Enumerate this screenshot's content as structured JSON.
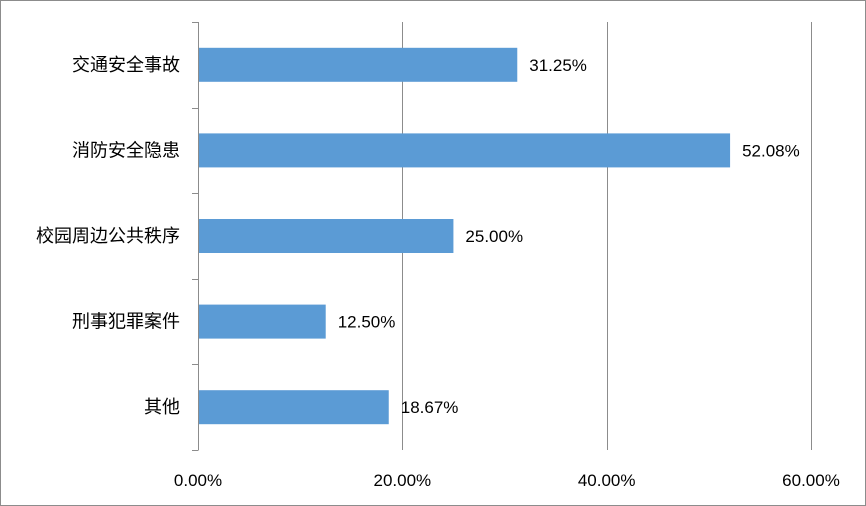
{
  "chart_data": {
    "type": "bar",
    "orientation": "horizontal",
    "categories": [
      "交通安全事故",
      "消防安全隐患",
      "校园周边公共秩序",
      "刑事犯罪案件",
      "其他"
    ],
    "values": [
      31.25,
      52.08,
      25.0,
      12.5,
      18.67
    ],
    "data_labels": [
      "31.25%",
      "52.08%",
      "25.00%",
      "12.50%",
      "18.67%"
    ],
    "xlim": [
      0,
      60
    ],
    "x_ticks": [
      0,
      20,
      40,
      60
    ],
    "x_tick_labels": [
      "0.00%",
      "20.00%",
      "40.00%",
      "60.00%"
    ],
    "title": "",
    "xlabel": "",
    "ylabel": "",
    "grid": "vertical",
    "legend": "none",
    "bar_color": "#5b9bd5",
    "grid_color": "#8c8c8c"
  }
}
